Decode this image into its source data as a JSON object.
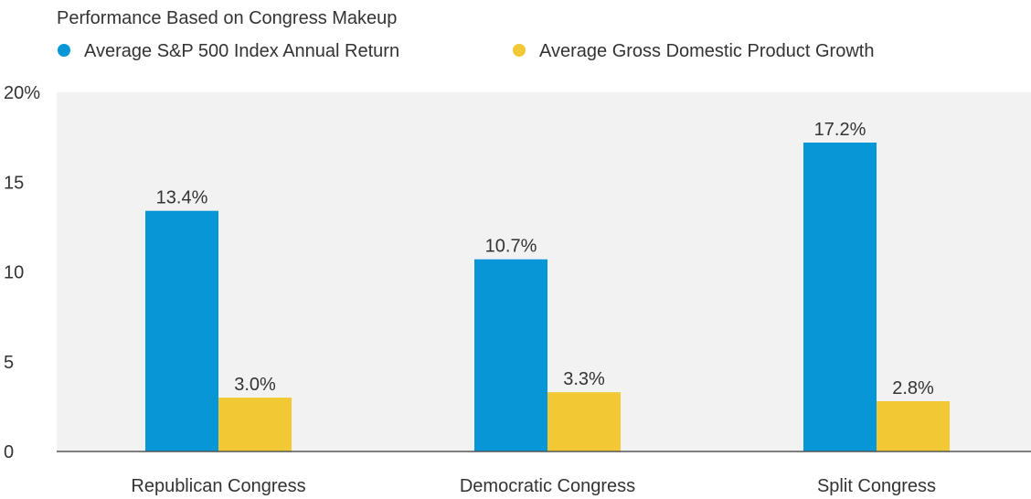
{
  "chart_data": {
    "type": "bar",
    "title": "Performance Based on Congress Makeup",
    "categories": [
      "Republican Congress",
      "Democratic Congress",
      "Split Congress"
    ],
    "series": [
      {
        "name": "Average S&P 500 Index Annual Return",
        "color": "#0797d6",
        "values": [
          13.4,
          10.7,
          17.2
        ],
        "labels": [
          "13.4%",
          "10.7%",
          "17.2%"
        ]
      },
      {
        "name": "Average Gross Domestic Product Growth",
        "color": "#f2c935",
        "values": [
          3.0,
          3.3,
          2.8
        ],
        "labels": [
          "3.0%",
          "3.3%",
          "2.8%"
        ]
      }
    ],
    "y_ticks": [
      {
        "value": 0,
        "label": "0"
      },
      {
        "value": 5,
        "label": "5"
      },
      {
        "value": 10,
        "label": "10"
      },
      {
        "value": 15,
        "label": "15"
      },
      {
        "value": 20,
        "label": "20%"
      }
    ],
    "ylim": [
      0,
      20
    ],
    "grid": false,
    "legend_position": "top-left",
    "plot_background": "#f2f2f2",
    "xlabel": "",
    "ylabel": ""
  }
}
